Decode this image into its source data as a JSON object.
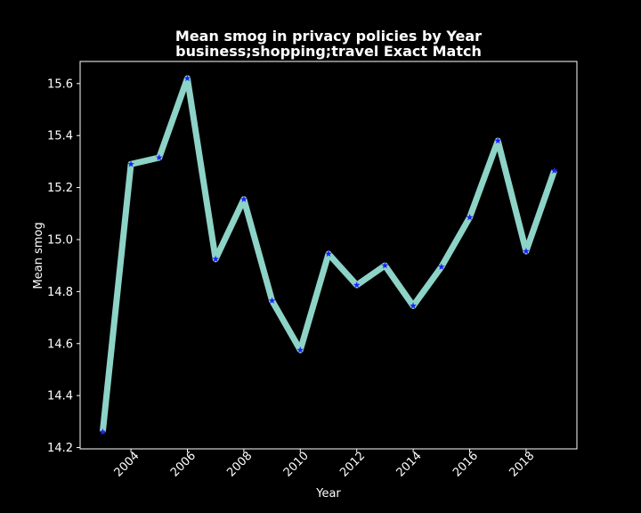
{
  "chart_data": {
    "type": "line",
    "title_line1": "Mean smog in privacy policies by Year",
    "title_line2": "business;shopping;travel Exact Match",
    "xlabel": "Year",
    "ylabel": "Mean smog",
    "x": [
      2003,
      2004,
      2005,
      2006,
      2007,
      2008,
      2009,
      2010,
      2011,
      2012,
      2013,
      2014,
      2015,
      2016,
      2017,
      2018,
      2019
    ],
    "series": [
      {
        "values": [
          14.26,
          15.29,
          15.315,
          15.62,
          14.925,
          15.155,
          14.765,
          14.575,
          14.945,
          14.825,
          14.9,
          14.745,
          14.895,
          15.085,
          15.38,
          14.955,
          15.265
        ]
      }
    ],
    "xlim": [
      2002.2,
      2019.8
    ],
    "ylim": [
      14.195,
      15.685
    ],
    "xticks": [
      "2004",
      "2006",
      "2008",
      "2010",
      "2012",
      "2014",
      "2016",
      "2018"
    ],
    "yticks": [
      "14.2",
      "14.4",
      "14.6",
      "14.8",
      "15.0",
      "15.2",
      "15.4",
      "15.6"
    ],
    "line_color": "#8dd3c7",
    "marker_color": "#1f1fff",
    "background": "#000000",
    "grid": false,
    "legend": "none"
  }
}
